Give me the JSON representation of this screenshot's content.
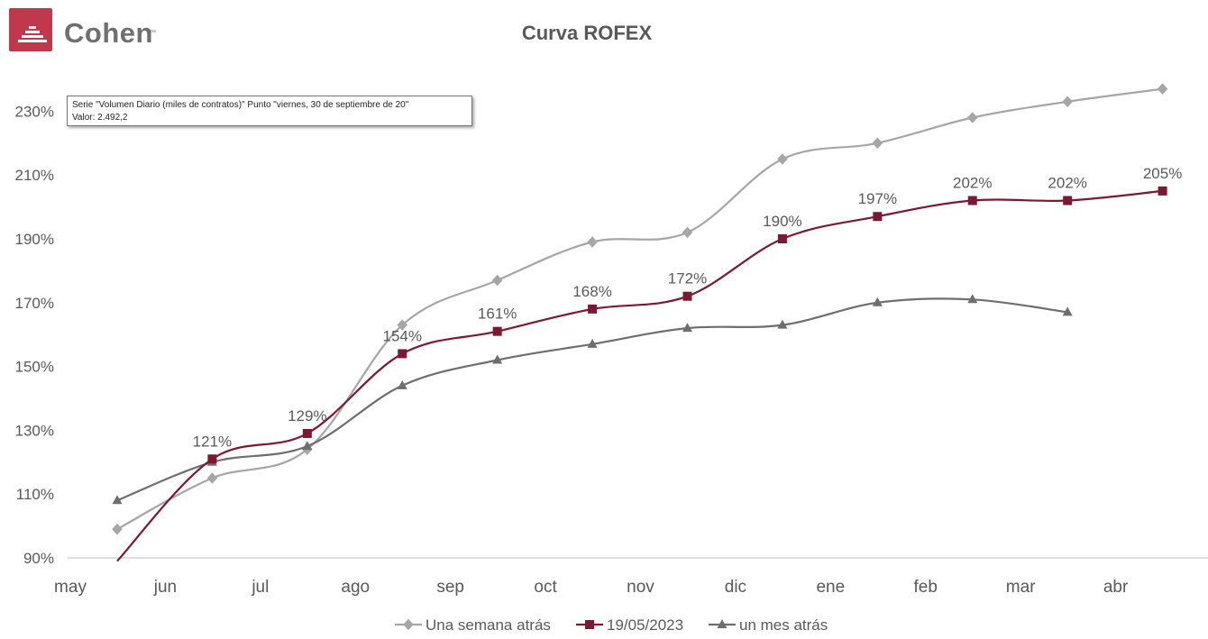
{
  "brand": {
    "name": "Cohen",
    "trademark": "™"
  },
  "tooltip": {
    "line1": "Serie \"Volumen Diario (miles de contratos)\" Punto \"viernes, 30 de septiembre de 20\"",
    "line2": "Valor:  2.492,2"
  },
  "colors": {
    "brand": "#c0384b",
    "series_semana": "#a6a6a6",
    "series_fecha": "#7b1933",
    "series_mes": "#6e6e6e",
    "text": "#595959"
  },
  "chart_data": {
    "type": "line",
    "title": "Curva ROFEX",
    "xlabel": "",
    "ylabel": "",
    "ylim": [
      90,
      240
    ],
    "yticks": [
      90,
      110,
      130,
      150,
      170,
      190,
      210,
      230
    ],
    "ytick_labels": [
      "90%",
      "110%",
      "130%",
      "150%",
      "170%",
      "190%",
      "210%",
      "230%"
    ],
    "month_labels": [
      "may",
      "jun",
      "jul",
      "ago",
      "sep",
      "oct",
      "nov",
      "dic",
      "ene",
      "feb",
      "mar",
      "abr"
    ],
    "grid": false,
    "smooth": true,
    "legend_position": "bottom",
    "series": [
      {
        "name": "Una semana atrás",
        "marker": "diamond",
        "color": "#a6a6a6",
        "values": [
          99,
          115,
          124,
          163,
          177,
          189,
          192,
          215,
          220,
          228,
          233,
          237
        ]
      },
      {
        "name": "19/05/2023",
        "marker": "square",
        "color": "#7b1933",
        "values": [
          89,
          121,
          129,
          154,
          161,
          168,
          172,
          190,
          197,
          202,
          202,
          205
        ],
        "data_labels": [
          "",
          "121%",
          "129%",
          "154%",
          "161%",
          "168%",
          "172%",
          "190%",
          "197%",
          "202%",
          "202%",
          "205%"
        ]
      },
      {
        "name": "un mes atrás",
        "marker": "triangle",
        "color": "#6e6e6e",
        "values": [
          108,
          120,
          125,
          144,
          152,
          157,
          162,
          163,
          170,
          171,
          167,
          null
        ]
      }
    ]
  }
}
